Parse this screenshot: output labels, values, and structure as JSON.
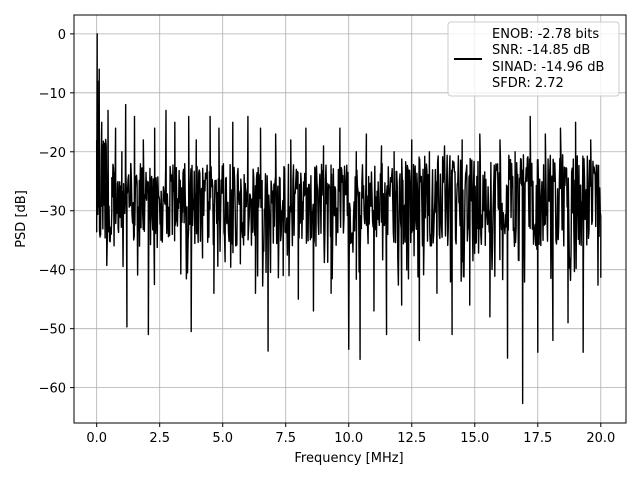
{
  "chart_data": {
    "type": "line",
    "xlabel": "Frequency [MHz]",
    "ylabel": "PSD [dB]",
    "xlim": [
      -0.9,
      21.0
    ],
    "ylim": [
      -66,
      3.2
    ],
    "xticks": [
      0.0,
      2.5,
      5.0,
      7.5,
      10.0,
      12.5,
      15.0,
      17.5,
      20.0
    ],
    "xtick_labels": [
      "0.0",
      "2.5",
      "5.0",
      "7.5",
      "10.0",
      "12.5",
      "15.0",
      "17.5",
      "20.0"
    ],
    "yticks": [
      0,
      -10,
      -20,
      -30,
      -40,
      -50,
      -60
    ],
    "ytick_labels": [
      "0",
      "−10",
      "−20",
      "−30",
      "−40",
      "−50",
      "−60"
    ],
    "grid": true,
    "legend": {
      "position": "top-right",
      "entries": [
        "ENOB: -2.78 bits",
        "SNR: -14.85 dB",
        "SINAD: -14.96 dB",
        "SFDR: 2.72"
      ]
    },
    "series": [
      {
        "color": "#000000",
        "band": {
          "x_start": 0.0,
          "x_end": 20.0,
          "upper": -22,
          "lower": -36,
          "min_points": 900
        },
        "x": [
          0.0,
          0.02,
          0.04,
          0.06,
          0.08,
          0.1,
          0.15,
          0.2,
          0.3,
          0.45,
          0.6,
          0.75,
          0.85,
          1.0,
          1.15,
          1.2,
          1.35,
          1.5,
          1.7,
          1.85,
          2.0,
          2.05,
          2.3,
          2.55,
          2.75,
          3.0,
          3.1,
          3.4,
          3.65,
          3.75,
          3.95,
          4.2,
          4.5,
          4.65,
          4.85,
          5.1,
          5.4,
          5.7,
          6.0,
          6.3,
          6.5,
          6.8,
          7.1,
          7.4,
          7.7,
          8.0,
          8.3,
          8.6,
          9.0,
          9.3,
          9.65,
          10.0,
          10.3,
          10.45,
          10.7,
          11.0,
          11.3,
          11.5,
          11.8,
          12.1,
          12.5,
          12.8,
          13.2,
          13.5,
          13.8,
          14.1,
          14.5,
          14.8,
          15.2,
          15.6,
          16.0,
          16.3,
          16.6,
          16.9,
          17.2,
          17.5,
          17.8,
          18.1,
          18.4,
          18.7,
          19.0,
          19.3,
          19.6,
          20.0
        ],
        "y": [
          -18,
          0,
          -8,
          -20,
          -12,
          -6,
          -28,
          -15,
          -24,
          -13,
          -30,
          -16,
          -33,
          -20,
          -12,
          -49.7,
          -22,
          -14,
          -36,
          -18,
          -25,
          -51,
          -16,
          -35,
          -13,
          -34,
          -15,
          -28,
          -14,
          -50.5,
          -18,
          -38,
          -14,
          -44,
          -16,
          -32,
          -15,
          -39,
          -14,
          -44,
          -16,
          -53.8,
          -17,
          -41,
          -18,
          -45,
          -16,
          -47,
          -19,
          -44,
          -16,
          -53.5,
          -20,
          -55.2,
          -17,
          -47,
          -19,
          -51,
          -20,
          -46,
          -18,
          -52,
          -20,
          -44,
          -19,
          -51,
          -18,
          -46,
          -17,
          -48,
          -18,
          -55,
          -20,
          -62.7,
          -14,
          -54,
          -17,
          -52,
          -16,
          -49,
          -15,
          -54,
          -18,
          -31
        ]
      }
    ]
  }
}
